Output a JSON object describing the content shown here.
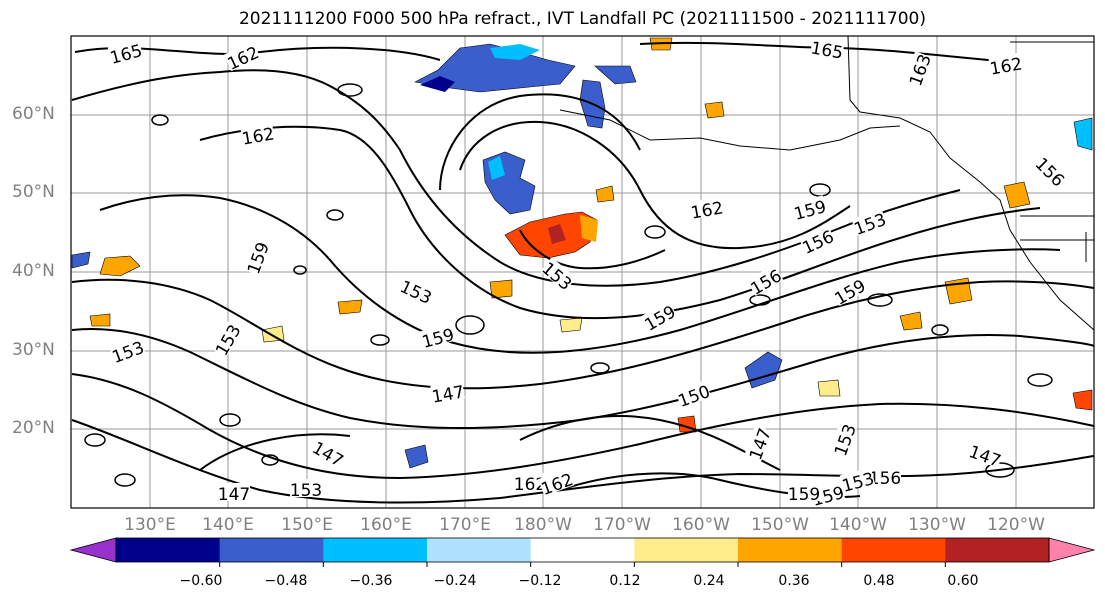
{
  "title": "2021111200 F000 500 hPa refract., IVT Landfall PC (2021111500 - 2021111700)",
  "map": {
    "lat_labels": [
      "60°N",
      "50°N",
      "40°N",
      "30°N",
      "20°N"
    ],
    "lon_labels": [
      "130°E",
      "140°E",
      "150°E",
      "160°E",
      "170°E",
      "180°W",
      "170°W",
      "160°W",
      "150°W",
      "140°W",
      "130°W",
      "120°W"
    ],
    "contour_labels": [
      "165",
      "162",
      "165",
      "163",
      "162",
      "162",
      "156",
      "162",
      "159",
      "153",
      "156",
      "159",
      "153",
      "156",
      "159",
      "153",
      "153",
      "159",
      "159",
      "153",
      "147",
      "150",
      "147",
      "147",
      "153",
      "156",
      "153",
      "159",
      "159",
      "147",
      "162",
      "162",
      "153",
      "147"
    ]
  },
  "colorbar": {
    "ticks": [
      "−0.60",
      "−0.48",
      "−0.36",
      "−0.24",
      "−0.12",
      "0.12",
      "0.24",
      "0.36",
      "0.48",
      "0.60"
    ],
    "colors": [
      "#9932cc",
      "#00008b",
      "#3a5fcd",
      "#00bfff",
      "#b0e2ff",
      "#ffffff",
      "#ffec8b",
      "#ffa500",
      "#ff4500",
      "#b22222",
      "#ff82ab"
    ]
  }
}
